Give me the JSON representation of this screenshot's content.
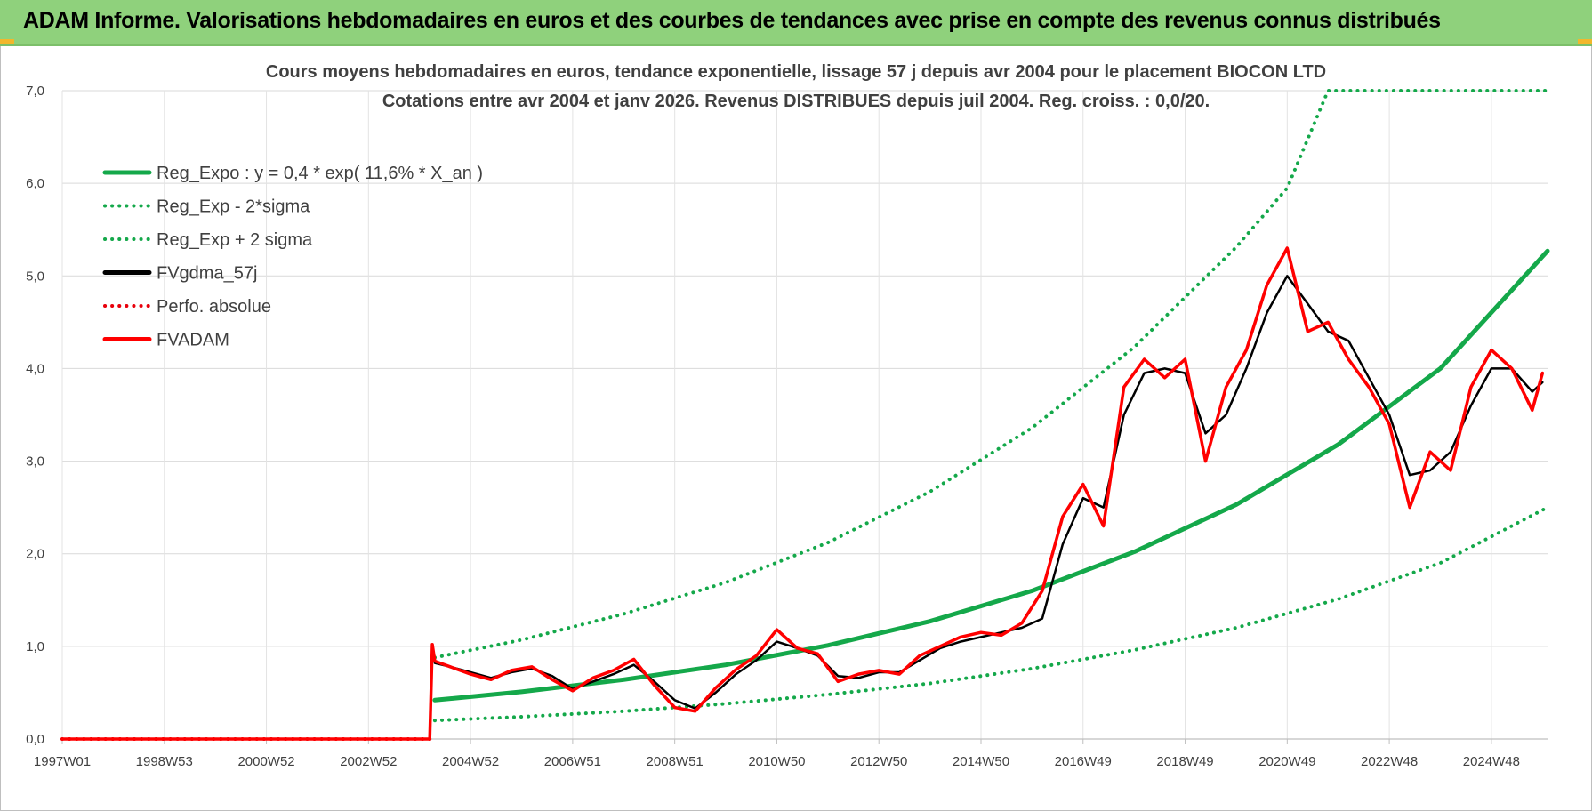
{
  "header": {
    "title": "ADAM Informe. Valorisations hebdomadaires en euros et des courbes de tendances avec prise en compte des revenus connus distribués"
  },
  "chart_data": {
    "type": "line",
    "title_line1": "Cours moyens hebdomadaires en euros, tendance exponentielle, lissage 57 j depuis avr 2004 pour le placement BIOCON LTD",
    "title_line2": "Cotations entre avr 2004 et janv 2026. Revenus DISTRIBUES depuis juil 2004. Reg. croiss. : 0,0/20.",
    "xlim": [
      1997.0,
      2026.1
    ],
    "ylim": [
      0,
      7
    ],
    "y_ticks": [
      "0,0",
      "1,0",
      "2,0",
      "3,0",
      "4,0",
      "5,0",
      "6,0",
      "7,0"
    ],
    "x_ticks": [
      {
        "label": "1997W01",
        "x": 1997.0
      },
      {
        "label": "1998W53",
        "x": 1999.0
      },
      {
        "label": "2000W52",
        "x": 2001.0
      },
      {
        "label": "2002W52",
        "x": 2003.0
      },
      {
        "label": "2004W52",
        "x": 2005.0
      },
      {
        "label": "2006W51",
        "x": 2007.0
      },
      {
        "label": "2008W51",
        "x": 2009.0
      },
      {
        "label": "2010W50",
        "x": 2011.0
      },
      {
        "label": "2012W50",
        "x": 2013.0
      },
      {
        "label": "2014W50",
        "x": 2015.0
      },
      {
        "label": "2016W49",
        "x": 2017.0
      },
      {
        "label": "2018W49",
        "x": 2019.0
      },
      {
        "label": "2020W49",
        "x": 2021.0
      },
      {
        "label": "2022W48",
        "x": 2023.0
      },
      {
        "label": "2024W48",
        "x": 2025.0
      }
    ],
    "grid": true,
    "legend_position": "top-left",
    "series": [
      {
        "name": "Reg_Expo : y = 0,4 * exp( 11,6% *  X_an )",
        "color": "#14a84a",
        "style": "solid",
        "x": [
          2004.3,
          2006.0,
          2008.0,
          2010.0,
          2012.0,
          2014.0,
          2016.0,
          2018.0,
          2020.0,
          2022.0,
          2024.0,
          2026.1
        ],
        "y": [
          0.42,
          0.51,
          0.64,
          0.8,
          1.01,
          1.27,
          1.6,
          2.02,
          2.53,
          3.18,
          4.0,
          5.27
        ]
      },
      {
        "name": "Reg_Exp - 2*sigma",
        "color": "#14a84a",
        "style": "dotted",
        "x": [
          2004.3,
          2006.0,
          2008.0,
          2010.0,
          2012.0,
          2014.0,
          2016.0,
          2018.0,
          2020.0,
          2022.0,
          2024.0,
          2026.1
        ],
        "y": [
          0.2,
          0.24,
          0.3,
          0.38,
          0.48,
          0.6,
          0.76,
          0.96,
          1.2,
          1.51,
          1.9,
          2.5
        ]
      },
      {
        "name": "Reg_Exp + 2 sigma",
        "color": "#14a84a",
        "style": "dotted",
        "x": [
          2004.3,
          2006.0,
          2008.0,
          2010.0,
          2012.0,
          2014.0,
          2016.0,
          2018.0,
          2020.0,
          2021.0,
          2021.8,
          2026.1
        ],
        "y": [
          0.88,
          1.07,
          1.35,
          1.69,
          2.12,
          2.67,
          3.36,
          4.23,
          5.31,
          5.95,
          7.0,
          7.0
        ]
      },
      {
        "name": "FVgdma_57j",
        "color": "#000000",
        "style": "solid",
        "x": [
          2004.3,
          2004.6,
          2005.0,
          2005.4,
          2005.8,
          2006.2,
          2006.6,
          2007.0,
          2007.4,
          2007.8,
          2008.2,
          2008.6,
          2009.0,
          2009.4,
          2009.8,
          2010.2,
          2010.6,
          2011.0,
          2011.4,
          2011.8,
          2012.2,
          2012.6,
          2013.0,
          2013.4,
          2013.8,
          2014.2,
          2014.6,
          2015.0,
          2015.4,
          2015.8,
          2016.2,
          2016.6,
          2017.0,
          2017.4,
          2017.8,
          2018.2,
          2018.6,
          2019.0,
          2019.4,
          2019.8,
          2020.2,
          2020.6,
          2021.0,
          2021.4,
          2021.8,
          2022.2,
          2022.6,
          2023.0,
          2023.4,
          2023.8,
          2024.2,
          2024.6,
          2025.0,
          2025.4,
          2025.8,
          2026.0
        ],
        "y": [
          0.82,
          0.78,
          0.72,
          0.66,
          0.72,
          0.76,
          0.68,
          0.54,
          0.62,
          0.7,
          0.8,
          0.62,
          0.42,
          0.33,
          0.5,
          0.7,
          0.85,
          1.05,
          0.98,
          0.9,
          0.68,
          0.66,
          0.72,
          0.72,
          0.85,
          0.98,
          1.05,
          1.1,
          1.15,
          1.2,
          1.3,
          2.1,
          2.6,
          2.5,
          3.5,
          3.95,
          4.0,
          3.95,
          3.3,
          3.5,
          4.0,
          4.6,
          5.0,
          4.7,
          4.4,
          4.3,
          3.9,
          3.5,
          2.85,
          2.9,
          3.1,
          3.6,
          4.0,
          4.0,
          3.75,
          3.85
        ]
      },
      {
        "name": "Perfo. absolue",
        "color": "#e8000b",
        "style": "dotted",
        "x": [
          1997.0,
          2004.2
        ],
        "y": [
          0.0,
          0.0
        ]
      },
      {
        "name": "FVADAM",
        "color": "#ff0000",
        "style": "solid",
        "x": [
          1997.0,
          2004.2,
          2004.25,
          2004.3,
          2004.6,
          2005.0,
          2005.4,
          2005.8,
          2006.2,
          2006.6,
          2007.0,
          2007.4,
          2007.8,
          2008.2,
          2008.6,
          2009.0,
          2009.4,
          2009.8,
          2010.2,
          2010.6,
          2011.0,
          2011.4,
          2011.8,
          2012.2,
          2012.6,
          2013.0,
          2013.4,
          2013.8,
          2014.2,
          2014.6,
          2015.0,
          2015.4,
          2015.8,
          2016.2,
          2016.6,
          2017.0,
          2017.4,
          2017.8,
          2018.2,
          2018.6,
          2019.0,
          2019.4,
          2019.8,
          2020.2,
          2020.6,
          2021.0,
          2021.4,
          2021.8,
          2022.2,
          2022.6,
          2023.0,
          2023.4,
          2023.8,
          2024.2,
          2024.6,
          2025.0,
          2025.4,
          2025.8,
          2026.0
        ],
        "y": [
          0.0,
          0.0,
          1.02,
          0.84,
          0.78,
          0.7,
          0.64,
          0.74,
          0.78,
          0.64,
          0.52,
          0.66,
          0.74,
          0.86,
          0.58,
          0.34,
          0.3,
          0.55,
          0.75,
          0.9,
          1.18,
          0.98,
          0.92,
          0.62,
          0.7,
          0.74,
          0.7,
          0.9,
          1.0,
          1.1,
          1.15,
          1.12,
          1.25,
          1.6,
          2.4,
          2.75,
          2.3,
          3.8,
          4.1,
          3.9,
          4.1,
          3.0,
          3.8,
          4.2,
          4.9,
          5.3,
          4.4,
          4.5,
          4.1,
          3.8,
          3.4,
          2.5,
          3.1,
          2.9,
          3.8,
          4.2,
          4.0,
          3.55,
          3.95
        ]
      }
    ]
  }
}
